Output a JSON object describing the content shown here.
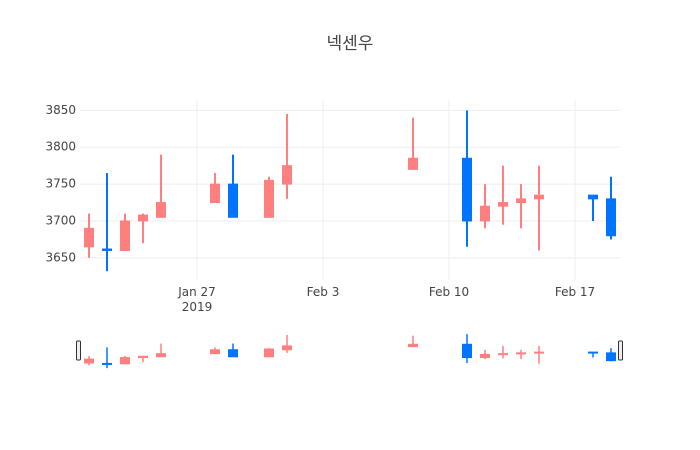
{
  "chart_data": {
    "type": "candlestick",
    "title": "넥센우",
    "x": [
      "2019-01-21",
      "2019-01-22",
      "2019-01-23",
      "2019-01-24",
      "2019-01-25",
      "2019-01-28",
      "2019-01-29",
      "2019-01-31",
      "2019-02-01",
      "2019-02-08",
      "2019-02-11",
      "2019-02-12",
      "2019-02-13",
      "2019-02-14",
      "2019-02-15",
      "2019-02-18",
      "2019-02-19"
    ],
    "open": [
      3665,
      3662,
      3660,
      3700,
      3705,
      3725,
      3750,
      3705,
      3750,
      3770,
      3785,
      3700,
      3720,
      3725,
      3730,
      3735,
      3730
    ],
    "high": [
      3710,
      3765,
      3710,
      3710,
      3790,
      3765,
      3790,
      3760,
      3845,
      3840,
      3850,
      3750,
      3775,
      3750,
      3775,
      3735,
      3760
    ],
    "low": [
      3650,
      3632,
      3660,
      3670,
      3705,
      3725,
      3705,
      3705,
      3730,
      3770,
      3665,
      3690,
      3695,
      3690,
      3660,
      3700,
      3675
    ],
    "close": [
      3690,
      3660,
      3700,
      3708,
      3725,
      3750,
      3705,
      3755,
      3775,
      3785,
      3700,
      3720,
      3725,
      3730,
      3735,
      3730,
      3680
    ],
    "increasing_color": "#ff7f7f",
    "decreasing_color": "#0074ff",
    "xlim": [
      "2019-01-20T12:00:00Z",
      "2019-02-19T12:00:00Z"
    ],
    "xticks": [
      {
        "value": "2019-01-27",
        "label": "Jan 27\n2019"
      },
      {
        "value": "2019-02-03",
        "label": "Feb 3"
      },
      {
        "value": "2019-02-10",
        "label": "Feb 10"
      },
      {
        "value": "2019-02-17",
        "label": "Feb 17"
      }
    ],
    "ylim": [
      3620,
      3864
    ],
    "yticks": [
      3650,
      3700,
      3750,
      3800,
      3850
    ],
    "grid": true,
    "range_slider": true
  }
}
